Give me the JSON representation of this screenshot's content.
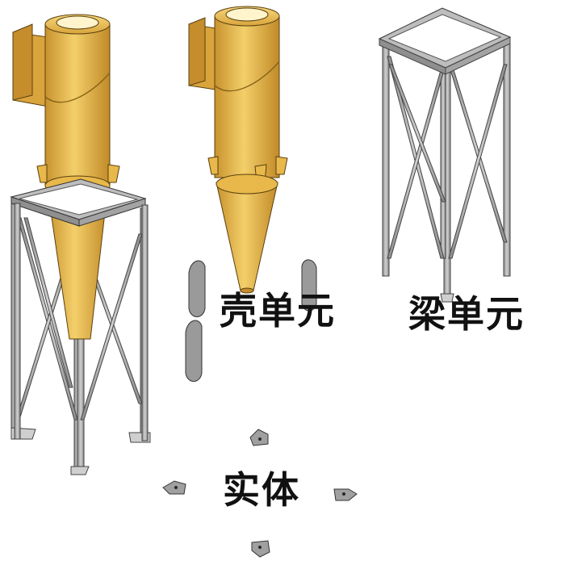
{
  "labels": {
    "shell": "壳单元",
    "beam": "梁单元",
    "solid": "实体"
  },
  "colors": {
    "shell_body": "#e8b84a",
    "shell_dark": "#b8862a",
    "steel": "#a8a8a8",
    "steel_dark": "#6e6e6e",
    "plate": "#9a9a9a",
    "outline": "#333333",
    "label": "#111111"
  }
}
